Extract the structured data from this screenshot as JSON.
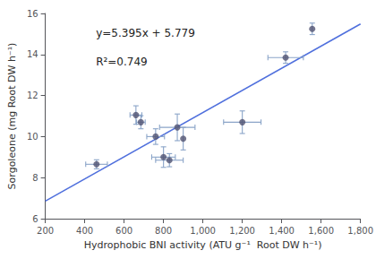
{
  "chart_data": {
    "type": "scatter",
    "xlabel": "Hydrophobic BNI activity (ATU g⁻¹  Root DW h⁻¹)",
    "ylabel": "Sorgoleone (mg Root DW h⁻¹)",
    "annotations": [
      "y=5.395x + 5.779",
      "R²=0.749"
    ],
    "xlim": [
      200,
      1800
    ],
    "ylim": [
      6,
      16
    ],
    "xticks": [
      200,
      400,
      600,
      800,
      1000,
      1200,
      1400,
      1600,
      1800
    ],
    "yticks": [
      6,
      8,
      10,
      12,
      14,
      16
    ],
    "grid": false,
    "series": [
      {
        "type": "line",
        "x": [
          200,
          1800
        ],
        "values": [
          6.858,
          15.49
        ]
      },
      {
        "type": "scatter",
        "x": [
          460,
          660,
          685,
          760,
          800,
          830,
          870,
          900,
          1200,
          1420,
          1555
        ],
        "values": [
          8.65,
          11.05,
          10.7,
          10.0,
          9.0,
          8.85,
          10.45,
          9.9,
          10.7,
          13.85,
          15.25
        ],
        "xerr": [
          55,
          30,
          22,
          45,
          60,
          70,
          90,
          0,
          95,
          90,
          0
        ],
        "yerr": [
          0.22,
          0.45,
          0.32,
          0.38,
          0.5,
          0.32,
          0.65,
          0.55,
          0.55,
          0.28,
          0.28
        ]
      }
    ]
  }
}
